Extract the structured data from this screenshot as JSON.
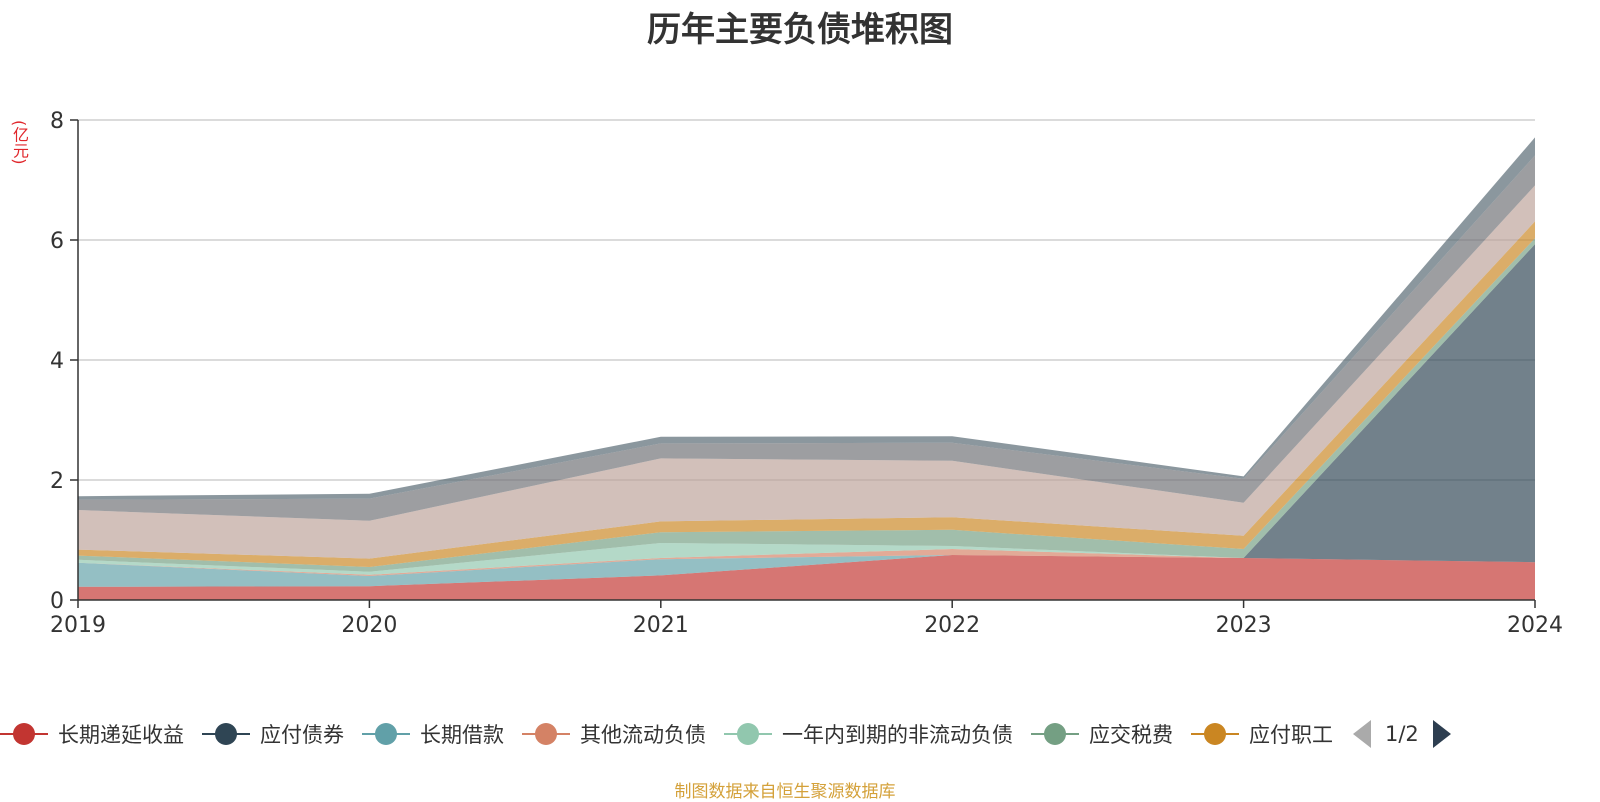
{
  "chart_data": {
    "type": "area",
    "title": "历年主要负债堆积图",
    "ylabel": "(亿元)",
    "x": [
      "2019",
      "2020",
      "2021",
      "2022",
      "2023",
      "2024"
    ],
    "ylim": [
      0,
      8
    ],
    "yticks": [
      "0",
      "2",
      "4",
      "6",
      "8"
    ],
    "grid": true,
    "stacked": true,
    "series": [
      {
        "name": "长期递延收益",
        "color": "#c23531",
        "values": [
          0.22,
          0.23,
          0.41,
          0.75,
          0.7,
          0.63
        ]
      },
      {
        "name": "应付债券",
        "color": "#2f4554",
        "values": [
          0,
          0,
          0,
          0,
          0,
          5.3
        ]
      },
      {
        "name": "长期借款",
        "color": "#61a0a8",
        "values": [
          0.4,
          0.17,
          0.27,
          0,
          0,
          0
        ]
      },
      {
        "name": "其他流动负债",
        "color": "#d48265",
        "values": [
          0,
          0.02,
          0.02,
          0.1,
          0,
          0
        ]
      },
      {
        "name": "一年内到期的非流动负债",
        "color": "#91c7ae",
        "values": [
          0.05,
          0.05,
          0.25,
          0.05,
          0,
          0
        ]
      },
      {
        "name": "应交税费",
        "color": "#749f83",
        "values": [
          0.07,
          0.08,
          0.18,
          0.27,
          0.15,
          0.1
        ]
      },
      {
        "name": "应付职工",
        "color": "#ca8622",
        "values": [
          0.1,
          0.14,
          0.18,
          0.21,
          0.22,
          0.28
        ]
      },
      {
        "name": "",
        "color": "#bda29a",
        "values": [
          0.66,
          0.63,
          1.05,
          0.94,
          0.55,
          0.6
        ]
      },
      {
        "name": "",
        "color": "#6e7074",
        "values": [
          0.17,
          0.37,
          0.25,
          0.3,
          0.4,
          0.5
        ]
      },
      {
        "name": "",
        "color": "#546570",
        "values": [
          0.06,
          0.08,
          0.11,
          0.11,
          0.04,
          0.3
        ]
      }
    ],
    "legend": {
      "position": "bottom",
      "page": "1/2"
    }
  },
  "source": "制图数据来自恒生聚源数据库"
}
